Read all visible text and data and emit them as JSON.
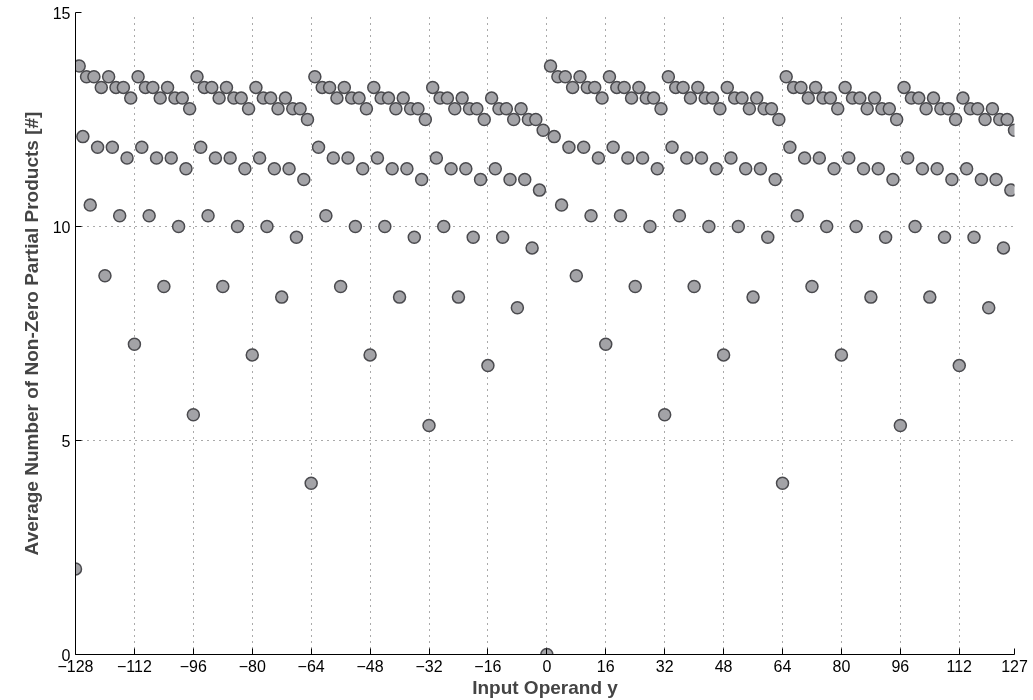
{
  "chart_data": {
    "type": "scatter",
    "xlabel": "Input Operand y",
    "ylabel": "Average Number of Non-Zero Partial Products [#]",
    "x": [
      -128,
      -127,
      -126,
      -125,
      -124,
      -123,
      -122,
      -121,
      -120,
      -119,
      -118,
      -117,
      -116,
      -115,
      -114,
      -113,
      -112,
      -111,
      -110,
      -109,
      -108,
      -107,
      -106,
      -105,
      -104,
      -103,
      -102,
      -101,
      -100,
      -99,
      -98,
      -97,
      -96,
      -95,
      -94,
      -93,
      -92,
      -91,
      -90,
      -89,
      -88,
      -87,
      -86,
      -85,
      -84,
      -83,
      -82,
      -81,
      -80,
      -79,
      -78,
      -77,
      -76,
      -75,
      -74,
      -73,
      -72,
      -71,
      -70,
      -69,
      -68,
      -67,
      -66,
      -65,
      -64,
      -63,
      -62,
      -61,
      -60,
      -59,
      -58,
      -57,
      -56,
      -55,
      -54,
      -53,
      -52,
      -51,
      -50,
      -49,
      -48,
      -47,
      -46,
      -45,
      -44,
      -43,
      -42,
      -41,
      -40,
      -39,
      -38,
      -37,
      -36,
      -35,
      -34,
      -33,
      -32,
      -31,
      -30,
      -29,
      -28,
      -27,
      -26,
      -25,
      -24,
      -23,
      -22,
      -21,
      -20,
      -19,
      -18,
      -17,
      -16,
      -15,
      -14,
      -13,
      -12,
      -11,
      -10,
      -9,
      -8,
      -7,
      -6,
      -5,
      -4,
      -3,
      -2,
      -1,
      0,
      1,
      2,
      3,
      4,
      5,
      6,
      7,
      8,
      9,
      10,
      11,
      12,
      13,
      14,
      15,
      16,
      17,
      18,
      19,
      20,
      21,
      22,
      23,
      24,
      25,
      26,
      27,
      28,
      29,
      30,
      31,
      32,
      33,
      34,
      35,
      36,
      37,
      38,
      39,
      40,
      41,
      42,
      43,
      44,
      45,
      46,
      47,
      48,
      49,
      50,
      51,
      52,
      53,
      54,
      55,
      56,
      57,
      58,
      59,
      60,
      61,
      62,
      63,
      64,
      65,
      66,
      67,
      68,
      69,
      70,
      71,
      72,
      73,
      74,
      75,
      76,
      77,
      78,
      79,
      80,
      81,
      82,
      83,
      84,
      85,
      86,
      87,
      88,
      89,
      90,
      91,
      92,
      93,
      94,
      95,
      96,
      97,
      98,
      99,
      100,
      101,
      102,
      103,
      104,
      105,
      106,
      107,
      108,
      109,
      110,
      111,
      112,
      113,
      114,
      115,
      116,
      117,
      118,
      119,
      120,
      121,
      122,
      123,
      124,
      125,
      126,
      127
    ],
    "series": [
      {
        "color": "#a3a3a7",
        "values": [
          2.0,
          13.75,
          12.1,
          13.5,
          10.5,
          13.5,
          11.85,
          13.25,
          8.85,
          13.5,
          11.85,
          13.25,
          10.25,
          13.25,
          11.6,
          13.0,
          7.25,
          13.5,
          11.85,
          13.25,
          10.25,
          13.25,
          11.6,
          13.0,
          8.6,
          13.25,
          11.6,
          13.0,
          10.0,
          13.0,
          11.35,
          12.75,
          5.6,
          13.5,
          11.85,
          13.25,
          10.25,
          13.25,
          11.6,
          13.0,
          8.6,
          13.25,
          11.6,
          13.0,
          10.0,
          13.0,
          11.35,
          12.75,
          7.0,
          13.25,
          11.6,
          13.0,
          10.0,
          13.0,
          11.35,
          12.75,
          8.35,
          13.0,
          11.35,
          12.75,
          9.75,
          12.75,
          11.1,
          12.5,
          4.0,
          13.5,
          11.85,
          13.25,
          10.25,
          13.25,
          11.6,
          13.0,
          8.6,
          13.25,
          11.6,
          13.0,
          10.0,
          13.0,
          11.35,
          12.75,
          7.0,
          13.25,
          11.6,
          13.0,
          10.0,
          13.0,
          11.35,
          12.75,
          8.35,
          13.0,
          11.35,
          12.75,
          9.75,
          12.75,
          11.1,
          12.5,
          5.35,
          13.25,
          11.6,
          13.0,
          10.0,
          13.0,
          11.35,
          12.75,
          8.35,
          13.0,
          11.35,
          12.75,
          9.75,
          12.75,
          11.1,
          12.5,
          6.75,
          13.0,
          11.35,
          12.75,
          9.75,
          12.75,
          11.1,
          12.5,
          8.1,
          12.75,
          11.1,
          12.5,
          9.5,
          12.5,
          10.85,
          12.25,
          0.0,
          13.75,
          12.1,
          13.5,
          10.5,
          13.5,
          11.85,
          13.25,
          8.85,
          13.5,
          11.85,
          13.25,
          10.25,
          13.25,
          11.6,
          13.0,
          7.25,
          13.5,
          11.85,
          13.25,
          10.25,
          13.25,
          11.6,
          13.0,
          8.6,
          13.25,
          11.6,
          13.0,
          10.0,
          13.0,
          11.35,
          12.75,
          5.6,
          13.5,
          11.85,
          13.25,
          10.25,
          13.25,
          11.6,
          13.0,
          8.6,
          13.25,
          11.6,
          13.0,
          10.0,
          13.0,
          11.35,
          12.75,
          7.0,
          13.25,
          11.6,
          13.0,
          10.0,
          13.0,
          11.35,
          12.75,
          8.35,
          13.0,
          11.35,
          12.75,
          9.75,
          12.75,
          11.1,
          12.5,
          4.0,
          13.5,
          11.85,
          13.25,
          10.25,
          13.25,
          11.6,
          13.0,
          8.6,
          13.25,
          11.6,
          13.0,
          10.0,
          13.0,
          11.35,
          12.75,
          7.0,
          13.25,
          11.6,
          13.0,
          10.0,
          13.0,
          11.35,
          12.75,
          8.35,
          13.0,
          11.35,
          12.75,
          9.75,
          12.75,
          11.1,
          12.5,
          5.35,
          13.25,
          11.6,
          13.0,
          10.0,
          13.0,
          11.35,
          12.75,
          8.35,
          13.0,
          11.35,
          12.75,
          9.75,
          12.75,
          11.1,
          12.5,
          6.75,
          13.0,
          11.35,
          12.75,
          9.75,
          12.75,
          11.1,
          12.5,
          8.1,
          12.75,
          11.1,
          12.5,
          9.5,
          12.5,
          10.85,
          12.25
        ]
      }
    ],
    "xlim": [
      -128,
      127
    ],
    "xticks": [
      {
        "value": -128,
        "label": "−128"
      },
      {
        "value": -112,
        "label": "−112"
      },
      {
        "value": -96,
        "label": "−96"
      },
      {
        "value": -80,
        "label": "−80"
      },
      {
        "value": -64,
        "label": "−64"
      },
      {
        "value": -48,
        "label": "−48"
      },
      {
        "value": -32,
        "label": "−32"
      },
      {
        "value": -16,
        "label": "−16"
      },
      0,
      16,
      32,
      48,
      64,
      80,
      96,
      112,
      127
    ],
    "ylim": [
      0,
      15
    ],
    "yticks": [
      0,
      5,
      10,
      15
    ],
    "grid": true,
    "marker": "circle"
  }
}
